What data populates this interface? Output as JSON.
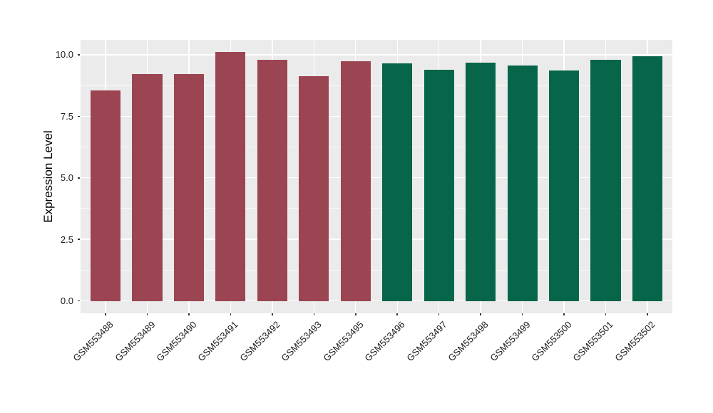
{
  "chart_data": {
    "type": "bar",
    "title": "",
    "xlabel": "",
    "ylabel": "Expression Level",
    "categories": [
      "GSM553488",
      "GSM553489",
      "GSM553490",
      "GSM553491",
      "GSM553492",
      "GSM553493",
      "GSM553495",
      "GSM553496",
      "GSM553497",
      "GSM553498",
      "GSM553499",
      "GSM553500",
      "GSM553501",
      "GSM553502"
    ],
    "values": [
      8.56,
      9.21,
      9.23,
      10.1,
      9.8,
      9.14,
      9.75,
      9.66,
      9.38,
      9.67,
      9.57,
      9.35,
      9.79,
      9.94
    ],
    "groups": [
      "group1",
      "group1",
      "group1",
      "group1",
      "group1",
      "group1",
      "group1",
      "group2",
      "group2",
      "group2",
      "group2",
      "group2",
      "group2",
      "group2"
    ],
    "group_colors": {
      "group1": "#9B4452",
      "group2": "#076549"
    },
    "yticks": [
      0,
      2.5,
      5,
      7.5,
      10
    ],
    "ytick_labels": [
      "0.0",
      "2.5",
      "5.0",
      "7.5",
      "10.0"
    ],
    "minor_yticks": [
      1.25,
      3.75,
      6.25,
      8.75
    ],
    "ylim": [
      0,
      10.1
    ],
    "expand_mult": 0.05,
    "discrete_expand": 0.6,
    "bar_width_frac": 0.72,
    "panel_bg": "#EBEBEB",
    "grid_color": "#FFFFFF",
    "axis_text_color": "#1A1A1A",
    "grid": "on",
    "legend": "none"
  }
}
